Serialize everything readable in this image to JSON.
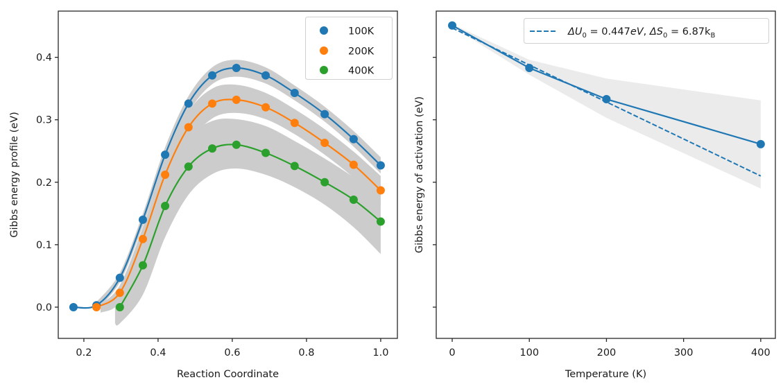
{
  "chart_data": [
    {
      "type": "line",
      "title": "",
      "xlabel": "Reaction Coordinate",
      "ylabel": "Gibbs energy profile (eV)",
      "xlim": [
        0.131,
        1.045
      ],
      "ylim": [
        -0.05,
        0.474
      ],
      "xticks": [
        0.2,
        0.4,
        0.6,
        0.8,
        1.0
      ],
      "xtick_labels": [
        "0.2",
        "0.4",
        "0.6",
        "0.8",
        "1.0"
      ],
      "yticks": [
        0.0,
        0.1,
        0.2,
        0.3,
        0.4
      ],
      "ytick_labels": [
        "0.0",
        "0.1",
        "0.2",
        "0.3",
        "0.4"
      ],
      "grid": false,
      "legend": {
        "placement": "top-right",
        "entries": [
          "100K",
          "200K",
          "400K"
        ]
      },
      "series": [
        {
          "name": "100K",
          "color": "#1f77b4",
          "x": [
            0.172,
            0.234,
            0.297,
            0.359,
            0.419,
            0.482,
            0.546,
            0.611,
            0.69,
            0.768,
            0.849,
            0.927,
            1.0
          ],
          "y": [
            0.0,
            0.003,
            0.047,
            0.14,
            0.244,
            0.326,
            0.371,
            0.383,
            0.371,
            0.343,
            0.309,
            0.269,
            0.227
          ],
          "band_x": [
            0.234,
            0.297,
            0.359,
            0.419,
            0.482,
            0.546,
            0.611,
            0.69,
            0.768,
            0.849,
            0.927,
            1.0
          ],
          "band_lower": [
            -0.004,
            0.04,
            0.13,
            0.232,
            0.312,
            0.357,
            0.369,
            0.358,
            0.331,
            0.297,
            0.257,
            0.214
          ],
          "band_upper": [
            0.008,
            0.055,
            0.15,
            0.256,
            0.338,
            0.384,
            0.396,
            0.384,
            0.355,
            0.321,
            0.282,
            0.24
          ]
        },
        {
          "name": "200K",
          "color": "#ff7f0e",
          "x": [
            0.234,
            0.297,
            0.359,
            0.419,
            0.482,
            0.546,
            0.611,
            0.69,
            0.768,
            0.849,
            0.927,
            1.0
          ],
          "y": [
            0.0,
            0.023,
            0.109,
            0.212,
            0.288,
            0.326,
            0.332,
            0.32,
            0.295,
            0.263,
            0.228,
            0.187
          ],
          "band_x": [
            0.245,
            0.297,
            0.359,
            0.419,
            0.482,
            0.546,
            0.611,
            0.69,
            0.768,
            0.849,
            0.927,
            1.0
          ],
          "band_lower": [
            -0.009,
            0.008,
            0.088,
            0.188,
            0.262,
            0.302,
            0.311,
            0.301,
            0.277,
            0.244,
            0.207,
            0.163
          ],
          "band_upper": [
            0.005,
            0.035,
            0.128,
            0.234,
            0.313,
            0.35,
            0.356,
            0.343,
            0.317,
            0.285,
            0.249,
            0.21
          ]
        },
        {
          "name": "400K",
          "color": "#2ca02c",
          "x": [
            0.297,
            0.359,
            0.419,
            0.482,
            0.546,
            0.611,
            0.69,
            0.768,
            0.849,
            0.927,
            1.0
          ],
          "y": [
            0.0,
            0.067,
            0.162,
            0.225,
            0.254,
            0.26,
            0.247,
            0.226,
            0.2,
            0.172,
            0.137
          ],
          "band_x": [
            0.284,
            0.297,
            0.359,
            0.419,
            0.482,
            0.546,
            0.611,
            0.69,
            0.768,
            0.849,
            0.927,
            1.0
          ],
          "band_lower": [
            -0.026,
            -0.026,
            0.02,
            0.112,
            0.18,
            0.213,
            0.222,
            0.212,
            0.192,
            0.164,
            0.128,
            0.085
          ],
          "band_upper": [
            0.01,
            0.025,
            0.115,
            0.212,
            0.272,
            0.298,
            0.301,
            0.29,
            0.266,
            0.238,
            0.208,
            0.175
          ]
        }
      ]
    },
    {
      "type": "line",
      "title": "",
      "xlabel": "Temperature (K)",
      "ylabel": "Gibbs energy of activation (eV)",
      "xlim": [
        -20.7,
        419
      ],
      "ylim": [
        -0.05,
        0.474
      ],
      "xticks": [
        0,
        100,
        200,
        300,
        400
      ],
      "xtick_labels": [
        "0",
        "100",
        "200",
        "300",
        "400"
      ],
      "yticks": [
        0.0,
        0.1,
        0.2,
        0.3,
        0.4
      ],
      "ytick_labels": [],
      "grid": false,
      "legend": {
        "placement": "top-right",
        "entries": [
          "ΔU₀ = 0.447eV, ΔS₀ = 6.87k_B"
        ]
      },
      "series": [
        {
          "name": "data",
          "color": "#1f77b4",
          "style": "solid-markers",
          "x": [
            0,
            100,
            200,
            400
          ],
          "y": [
            0.451,
            0.383,
            0.333,
            0.261
          ]
        },
        {
          "name": "fit",
          "color": "#1f77b4",
          "style": "dashed",
          "x": [
            0,
            400
          ],
          "y": [
            0.447,
            0.21
          ],
          "params": {
            "dU0_eV": 0.447,
            "dS0_kB": 6.87
          }
        }
      ],
      "band": {
        "x": [
          0,
          100,
          200,
          400
        ],
        "lower": [
          0.449,
          0.372,
          0.303,
          0.19
        ],
        "upper": [
          0.453,
          0.396,
          0.366,
          0.331
        ]
      }
    }
  ],
  "legend_left": {
    "items": [
      {
        "label": "100K",
        "color": "#1f77b4"
      },
      {
        "label": "200K",
        "color": "#ff7f0e"
      },
      {
        "label": "400K",
        "color": "#2ca02c"
      }
    ]
  },
  "legend_right": {
    "delta_u": "ΔU",
    "sub0": "0",
    "eq1": " = 0.447",
    "unit1": "eV",
    "comma": ", ",
    "delta_s": "ΔS",
    "eq2": " = 6.87k",
    "subB": "B"
  },
  "colors": {
    "band_left": "#cccccc",
    "band_right": "#ebebeb",
    "axis": "#262626"
  }
}
